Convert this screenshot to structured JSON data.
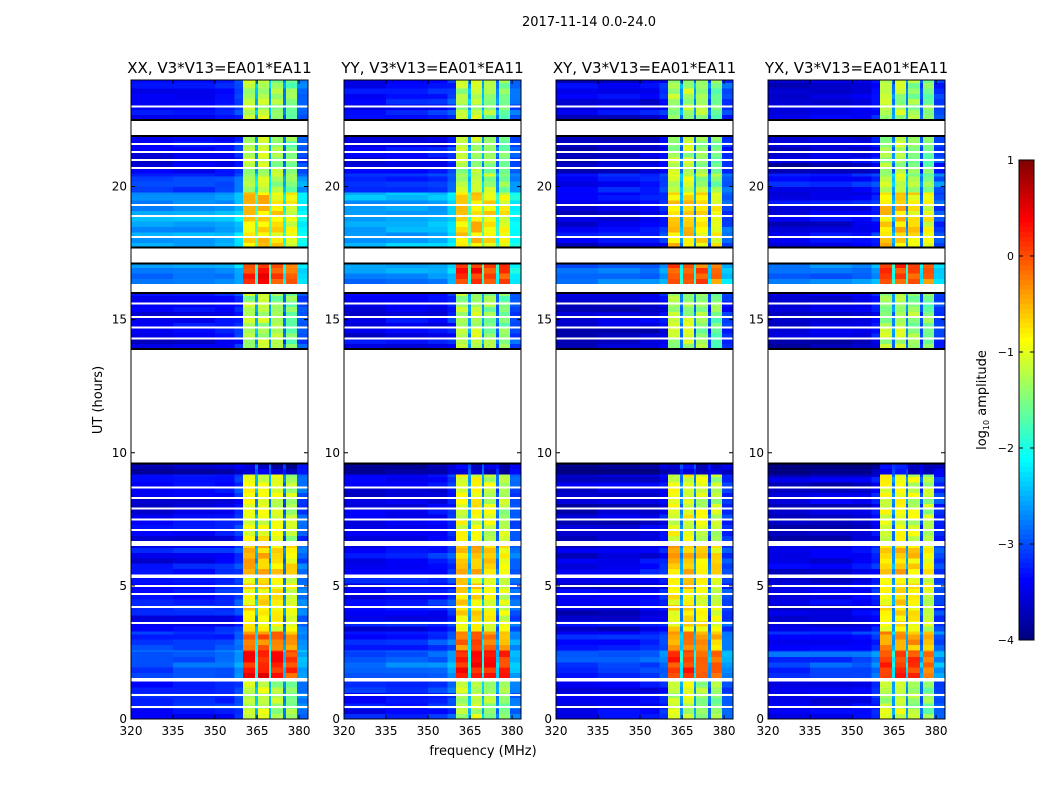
{
  "figure": {
    "suptitle": "2017-11-14 0.0-24.0",
    "xlabel": "frequency (MHz)",
    "ylabel": "UT (hours)"
  },
  "chart_data": {
    "type": "heatmap",
    "title": "2017-11-14 0.0-24.0",
    "xlabel": "frequency (MHz)",
    "ylabel": "UT (hours)",
    "xlim": [
      320,
      383.2
    ],
    "ylim": [
      0,
      24
    ],
    "xticks": [
      "320",
      "335",
      "350",
      "365",
      "380"
    ],
    "yticks": [
      "0",
      "5",
      "10",
      "15",
      "20"
    ],
    "panels": [
      {
        "title": "XX, V3*V13=EA01*EA11",
        "offset": 0.0,
        "offset_1778": 0.0
      },
      {
        "title": "YY, V3*V13=EA01*EA11",
        "offset": 0.0,
        "offset_1778": 0.05
      },
      {
        "title": "XY, V3*V13=EA01*EA11",
        "offset": -0.15,
        "offset_1778": -0.9
      },
      {
        "title": "YX, V3*V13=EA01*EA11",
        "offset": -0.15,
        "offset_1778": -0.9
      }
    ],
    "time_segments_hours": [
      {
        "start": 0.0,
        "end": 1.4,
        "base": -3.3,
        "bright": -1.2
      },
      {
        "start": 1.4,
        "end": 1.55,
        "flagged": true
      },
      {
        "start": 1.55,
        "end": 2.6,
        "base": -2.9,
        "bright": 0.3
      },
      {
        "start": 2.6,
        "end": 3.3,
        "base": -3.2,
        "bright": -0.2
      },
      {
        "start": 3.3,
        "end": 5.3,
        "base": -3.4,
        "bright": -0.8
      },
      {
        "start": 5.3,
        "end": 5.45,
        "flagged": true
      },
      {
        "start": 5.45,
        "end": 6.5,
        "base": -3.4,
        "bright": -0.6
      },
      {
        "start": 6.5,
        "end": 6.7,
        "flagged": true
      },
      {
        "start": 6.7,
        "end": 9.2,
        "base": -3.5,
        "bright": -1.0
      },
      {
        "start": 9.2,
        "end": 9.6,
        "base": -3.9,
        "bright": -3.5
      },
      {
        "start": 9.6,
        "end": 13.9,
        "flagged": true
      },
      {
        "start": 13.9,
        "end": 16.0,
        "base": -3.5,
        "bright": -1.3
      },
      {
        "start": 16.0,
        "end": 16.35,
        "flagged": true
      },
      {
        "start": 16.35,
        "end": 17.1,
        "base": -2.7,
        "bright": 0.2
      },
      {
        "start": 17.1,
        "end": 17.7,
        "flagged": true
      },
      {
        "start": 17.7,
        "end": 19.8,
        "base": -2.6,
        "bright": -0.7
      },
      {
        "start": 19.8,
        "end": 20.5,
        "base": -3.2,
        "bright": -1.2
      },
      {
        "start": 20.5,
        "end": 21.9,
        "base": -3.5,
        "bright": -1.3
      },
      {
        "start": 21.9,
        "end": 22.5,
        "flagged": true
      },
      {
        "start": 22.5,
        "end": 24.0,
        "base": -3.4,
        "bright": -1.3
      }
    ],
    "flag_lines_hours": [
      0.45,
      0.9,
      3.6,
      4.2,
      4.7,
      5.0,
      7.1,
      7.5,
      7.9,
      8.3,
      8.7,
      14.3,
      14.7,
      15.1,
      15.6,
      18.1,
      18.9,
      19.3,
      20.7,
      21.0,
      21.3,
      21.6,
      23.0
    ],
    "channel_bands_mhz": [
      {
        "start": 320,
        "end": 335,
        "type": "bg",
        "adj": 0.0
      },
      {
        "start": 335,
        "end": 350,
        "type": "bg",
        "adj": 0.05
      },
      {
        "start": 350,
        "end": 357,
        "type": "bg",
        "adj": 0.1
      },
      {
        "start": 357,
        "end": 360,
        "type": "bg",
        "adj": 0.3
      },
      {
        "start": 360,
        "end": 364.3,
        "type": "bright",
        "adj": 0.0
      },
      {
        "start": 364.3,
        "end": 365.4,
        "type": "bg",
        "adj": 0.9
      },
      {
        "start": 365.4,
        "end": 369.3,
        "type": "bright",
        "adj": 0.05
      },
      {
        "start": 369.3,
        "end": 370,
        "type": "bg",
        "adj": 0.9
      },
      {
        "start": 370,
        "end": 374.3,
        "type": "bright",
        "adj": -0.1
      },
      {
        "start": 374.3,
        "end": 375.4,
        "type": "bg",
        "adj": 0.6
      },
      {
        "start": 375.4,
        "end": 379.3,
        "type": "bright",
        "adj": -0.25
      },
      {
        "start": 379.3,
        "end": 383.2,
        "type": "bg",
        "adj": 0.5
      }
    ],
    "colorbar": {
      "label": "log10 amplitude",
      "label_main": "log",
      "label_sub": "10",
      "label_rest": " amplitude",
      "range": [
        -4,
        1
      ],
      "ticks": [
        "1",
        "0",
        "−1",
        "−2",
        "−3",
        "−4"
      ],
      "tick_values": [
        1,
        0,
        -1,
        -2,
        -3,
        -4
      ],
      "colormap": "jet"
    }
  }
}
